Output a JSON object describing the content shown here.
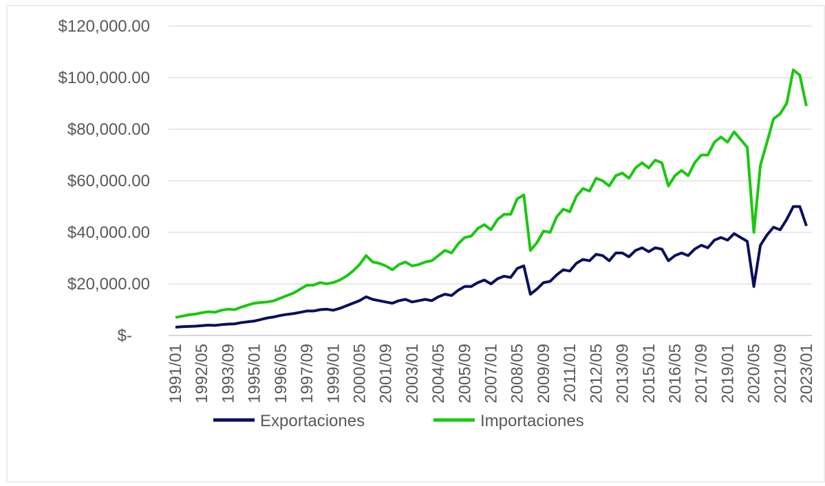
{
  "chart_data": {
    "type": "line",
    "categories": [
      "1991/01",
      null,
      null,
      null,
      "1992/05",
      null,
      null,
      null,
      "1993/09",
      null,
      null,
      null,
      "1995/01",
      null,
      null,
      null,
      "1996/05",
      null,
      null,
      null,
      "1997/09",
      null,
      null,
      null,
      "1999/01",
      null,
      null,
      null,
      "2000/05",
      null,
      null,
      null,
      "2001/09",
      null,
      null,
      null,
      "2003/01",
      null,
      null,
      null,
      "2004/05",
      null,
      null,
      null,
      "2005/09",
      null,
      null,
      null,
      "2007/01",
      null,
      null,
      null,
      "2008/05",
      null,
      null,
      null,
      "2009/09",
      null,
      null,
      null,
      "2011/01",
      null,
      null,
      null,
      "2012/05",
      null,
      null,
      null,
      "2013/09",
      null,
      null,
      null,
      "2015/01",
      null,
      null,
      null,
      "2016/05",
      null,
      null,
      null,
      "2017/09",
      null,
      null,
      null,
      "2019/01",
      null,
      null,
      null,
      "2020/05",
      null,
      null,
      null,
      "2021/09",
      null,
      null,
      null,
      "2023/01"
    ],
    "series": [
      {
        "name": "Exportaciones",
        "color": "#0a0f5c",
        "values": [
          3200,
          3400,
          3500,
          3600,
          3800,
          4000,
          3900,
          4200,
          4400,
          4500,
          5000,
          5300,
          5600,
          6200,
          6800,
          7200,
          7800,
          8200,
          8500,
          9000,
          9500,
          9500,
          10000,
          10200,
          9800,
          10500,
          11500,
          12500,
          13500,
          15000,
          14000,
          13500,
          13000,
          12500,
          13500,
          14000,
          13000,
          13500,
          14000,
          13500,
          15000,
          16000,
          15500,
          17500,
          19000,
          19000,
          20500,
          21500,
          20000,
          22000,
          23000,
          22500,
          26000,
          27000,
          16000,
          18000,
          20500,
          21000,
          23500,
          25500,
          25000,
          28000,
          29500,
          29000,
          31500,
          31000,
          29000,
          32000,
          32000,
          30500,
          33000,
          34000,
          32500,
          34000,
          33500,
          29000,
          31000,
          32000,
          31000,
          33500,
          35000,
          34000,
          37000,
          38000,
          37000,
          39500,
          38000,
          36500,
          19000,
          35000,
          39000,
          42000,
          41000,
          45000,
          50000,
          50000,
          42500
        ]
      },
      {
        "name": "Importaciones",
        "color": "#19c80f",
        "values": [
          7000,
          7500,
          8000,
          8300,
          8800,
          9200,
          9000,
          9800,
          10200,
          10000,
          11000,
          11800,
          12500,
          12800,
          13000,
          13500,
          14500,
          15500,
          16500,
          18000,
          19500,
          19500,
          20500,
          20000,
          20500,
          21500,
          23000,
          25000,
          27500,
          31000,
          28500,
          28000,
          27000,
          25500,
          27500,
          28500,
          27000,
          27500,
          28500,
          29000,
          31000,
          33000,
          32000,
          35500,
          38000,
          38500,
          41500,
          43000,
          41000,
          45000,
          47000,
          47000,
          53000,
          54500,
          33000,
          36000,
          40500,
          40000,
          46000,
          49000,
          48000,
          54000,
          57000,
          56000,
          61000,
          60000,
          58000,
          62000,
          63000,
          61000,
          65000,
          67000,
          65000,
          68000,
          67000,
          58000,
          62000,
          64000,
          62000,
          67000,
          70000,
          70000,
          75000,
          77000,
          75000,
          79000,
          76000,
          73000,
          40000,
          66000,
          75000,
          84000,
          86000,
          90000,
          103000,
          101000,
          89000
        ]
      }
    ],
    "ylim": [
      0,
      120000
    ],
    "yticks": [
      {
        "value": 0,
        "label": "$-"
      },
      {
        "value": 20000,
        "label": "$20,000.00"
      },
      {
        "value": 40000,
        "label": "$40,000.00"
      },
      {
        "value": 60000,
        "label": "$60,000.00"
      },
      {
        "value": 80000,
        "label": "$80,000.00"
      },
      {
        "value": 100000,
        "label": "$100,000.00"
      },
      {
        "value": 120000,
        "label": "$120,000.00"
      }
    ],
    "grid": true,
    "legend": "bottom"
  }
}
